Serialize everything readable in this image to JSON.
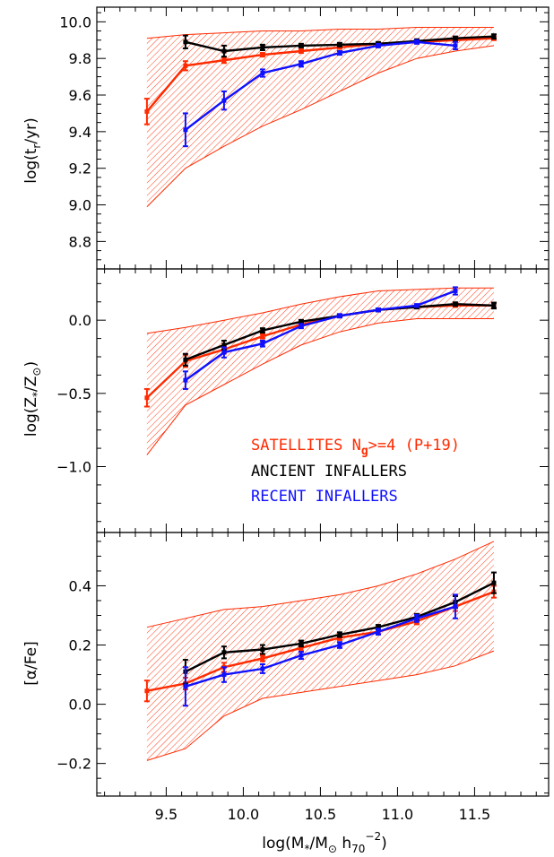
{
  "colors": {
    "satellites": "#ff2a00",
    "ancient": "#000000",
    "recent": "#1010ff",
    "hatch": "#ff2a00"
  },
  "x_axis": {
    "label_main": "log(M",
    "label_sub1": "*",
    "label_mid": "/M",
    "label_sun": "⊙",
    "label_h": " h",
    "label_sub2": "70",
    "label_sup": "−2",
    "label_end": ")",
    "range": [
      9.05,
      11.98
    ],
    "ticks": [
      9.5,
      10.0,
      10.5,
      11.0,
      11.5
    ],
    "tick_labels": [
      "9.5",
      "10.0",
      "10.5",
      "11.0",
      "11.5"
    ]
  },
  "legend": {
    "satellites_a": "SATELLITES N",
    "satellites_sub": "g",
    "satellites_b": ">=4 (P+19)",
    "ancient": "ANCIENT INFALLERS",
    "recent": "RECENT INFALLERS"
  },
  "chart_data": [
    {
      "type": "line",
      "ylabel_parts": [
        "log(t",
        "r",
        "/yr)"
      ],
      "ylim": [
        8.65,
        10.08
      ],
      "yticks": [
        8.8,
        9.0,
        9.2,
        9.4,
        9.6,
        9.8,
        10.0
      ],
      "ytick_labels": [
        "8.8",
        "9.0",
        "9.2",
        "9.4",
        "9.6",
        "9.8",
        "10.0"
      ],
      "band": {
        "x": [
          9.375,
          9.625,
          9.875,
          10.125,
          10.375,
          10.625,
          10.875,
          11.125,
          11.375,
          11.625
        ],
        "lo": [
          8.99,
          9.2,
          9.32,
          9.43,
          9.52,
          9.62,
          9.72,
          9.8,
          9.84,
          9.87
        ],
        "hi": [
          9.91,
          9.93,
          9.94,
          9.95,
          9.95,
          9.96,
          9.96,
          9.97,
          9.97,
          9.97
        ]
      },
      "series": [
        {
          "name": "SATELLITES N>=4 (P+19)",
          "key": "satellites",
          "x": [
            9.375,
            9.625,
            9.875,
            10.125,
            10.375,
            10.625,
            10.875,
            11.125,
            11.375,
            11.625
          ],
          "y": [
            9.51,
            9.76,
            9.79,
            9.82,
            9.84,
            9.86,
            9.88,
            9.89,
            9.9,
            9.91
          ],
          "err": [
            0.07,
            0.025,
            0.015,
            0.01,
            0.01,
            0.008,
            0.008,
            0.008,
            0.008,
            0.01
          ]
        },
        {
          "name": "ANCIENT INFALLERS",
          "key": "ancient",
          "x": [
            9.625,
            9.875,
            10.125,
            10.375,
            10.625,
            10.875,
            11.125,
            11.375,
            11.625
          ],
          "y": [
            9.89,
            9.84,
            9.86,
            9.87,
            9.875,
            9.88,
            9.895,
            9.91,
            9.92
          ],
          "err": [
            0.035,
            0.03,
            0.015,
            0.01,
            0.01,
            0.01,
            0.01,
            0.01,
            0.012
          ]
        },
        {
          "name": "RECENT INFALLERS",
          "key": "recent",
          "x": [
            9.625,
            9.875,
            10.125,
            10.375,
            10.625,
            10.875,
            11.125,
            11.375
          ],
          "y": [
            9.41,
            9.57,
            9.72,
            9.77,
            9.83,
            9.87,
            9.89,
            9.87
          ],
          "err": [
            0.09,
            0.05,
            0.02,
            0.015,
            0.01,
            0.01,
            0.01,
            0.02
          ]
        }
      ]
    },
    {
      "type": "line",
      "ylabel_parts": [
        "log(Z",
        "*",
        "/Z",
        "⊙",
        ")"
      ],
      "ylim": [
        -1.45,
        0.35
      ],
      "yticks": [
        -1.0,
        -0.5,
        0.0
      ],
      "ytick_labels": [
        "−1.0",
        "−0.5",
        "0.0"
      ],
      "band": {
        "x": [
          9.375,
          9.625,
          9.875,
          10.125,
          10.375,
          10.625,
          10.875,
          11.125,
          11.375,
          11.625
        ],
        "lo": [
          -0.92,
          -0.58,
          -0.44,
          -0.3,
          -0.17,
          -0.08,
          -0.02,
          0.01,
          0.01,
          0.01
        ],
        "hi": [
          -0.09,
          -0.05,
          0.0,
          0.05,
          0.11,
          0.16,
          0.2,
          0.21,
          0.22,
          0.22
        ]
      },
      "series": [
        {
          "name": "SATELLITES N>=4 (P+19)",
          "key": "satellites",
          "x": [
            9.375,
            9.625,
            9.875,
            10.125,
            10.375,
            10.625,
            10.875,
            11.125,
            11.375,
            11.625
          ],
          "y": [
            -0.53,
            -0.28,
            -0.2,
            -0.11,
            -0.03,
            0.03,
            0.07,
            0.09,
            0.1,
            0.1
          ],
          "err": [
            0.06,
            0.04,
            0.025,
            0.015,
            0.012,
            0.01,
            0.01,
            0.01,
            0.01,
            0.015
          ]
        },
        {
          "name": "ANCIENT INFALLERS",
          "key": "ancient",
          "x": [
            9.625,
            9.875,
            10.125,
            10.375,
            10.625,
            10.875,
            11.125,
            11.375,
            11.625
          ],
          "y": [
            -0.27,
            -0.17,
            -0.07,
            -0.01,
            0.03,
            0.07,
            0.09,
            0.11,
            0.1
          ],
          "err": [
            0.04,
            0.03,
            0.015,
            0.012,
            0.01,
            0.01,
            0.01,
            0.012,
            0.02
          ]
        },
        {
          "name": "RECENT INFALLERS",
          "key": "recent",
          "x": [
            9.625,
            9.875,
            10.125,
            10.375,
            10.625,
            10.875,
            11.125,
            11.375
          ],
          "y": [
            -0.41,
            -0.22,
            -0.16,
            -0.04,
            0.03,
            0.07,
            0.1,
            0.2
          ],
          "err": [
            0.06,
            0.035,
            0.02,
            0.015,
            0.012,
            0.01,
            0.01,
            0.025
          ]
        }
      ]
    },
    {
      "type": "line",
      "ylabel_parts": [
        "[α/Fe]"
      ],
      "ylim": [
        -0.31,
        0.58
      ],
      "yticks": [
        -0.2,
        0.0,
        0.2,
        0.4
      ],
      "ytick_labels": [
        "−0.2",
        "0.0",
        "0.2",
        "0.4"
      ],
      "band": {
        "x": [
          9.375,
          9.625,
          9.875,
          10.125,
          10.375,
          10.625,
          10.875,
          11.125,
          11.375,
          11.625
        ],
        "lo": [
          -0.19,
          -0.15,
          -0.04,
          0.02,
          0.04,
          0.06,
          0.08,
          0.1,
          0.13,
          0.18
        ],
        "hi": [
          0.26,
          0.29,
          0.32,
          0.33,
          0.35,
          0.37,
          0.4,
          0.44,
          0.49,
          0.55
        ]
      },
      "series": [
        {
          "name": "SATELLITES N>=4 (P+19)",
          "key": "satellites",
          "x": [
            9.375,
            9.625,
            9.875,
            10.125,
            10.375,
            10.625,
            10.875,
            11.125,
            11.375,
            11.625
          ],
          "y": [
            0.045,
            0.07,
            0.125,
            0.155,
            0.19,
            0.225,
            0.245,
            0.28,
            0.33,
            0.38
          ],
          "err": [
            0.035,
            0.02,
            0.015,
            0.01,
            0.01,
            0.008,
            0.008,
            0.01,
            0.015,
            0.02
          ]
        },
        {
          "name": "ANCIENT INFALLERS",
          "key": "ancient",
          "x": [
            9.625,
            9.875,
            10.125,
            10.375,
            10.625,
            10.875,
            11.125,
            11.375,
            11.625
          ],
          "y": [
            0.11,
            0.175,
            0.185,
            0.205,
            0.235,
            0.26,
            0.295,
            0.345,
            0.41
          ],
          "err": [
            0.04,
            0.02,
            0.015,
            0.01,
            0.008,
            0.008,
            0.01,
            0.02,
            0.035
          ]
        },
        {
          "name": "RECENT INFALLERS",
          "key": "recent",
          "x": [
            9.625,
            9.875,
            10.125,
            10.375,
            10.625,
            10.875,
            11.125,
            11.375
          ],
          "y": [
            0.06,
            0.1,
            0.12,
            0.165,
            0.2,
            0.245,
            0.29,
            0.33
          ],
          "err": [
            0.065,
            0.025,
            0.015,
            0.012,
            0.01,
            0.01,
            0.012,
            0.04
          ]
        }
      ]
    }
  ]
}
